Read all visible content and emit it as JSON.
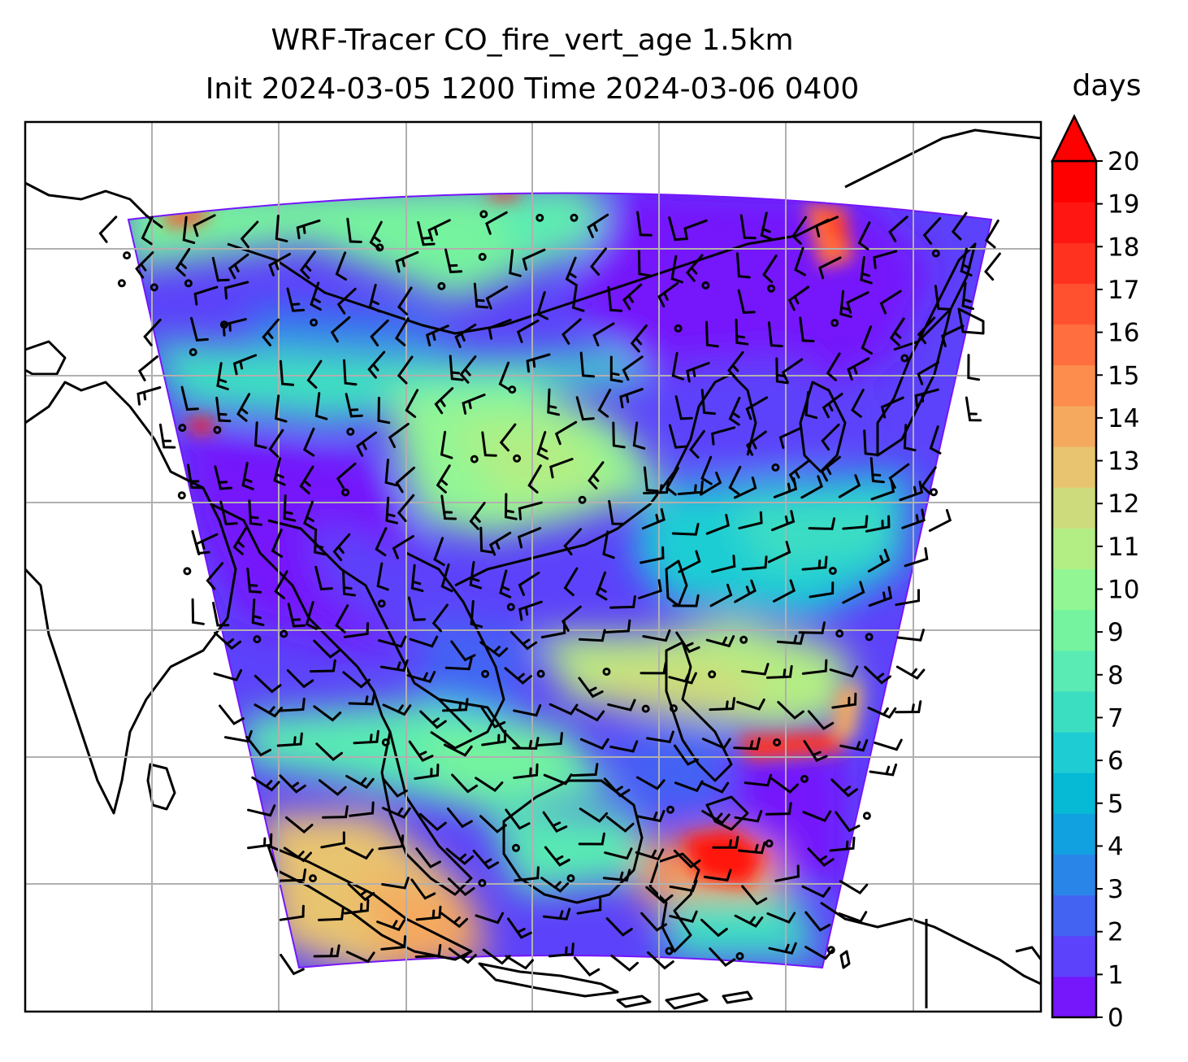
{
  "title_line1": "WRF-Tracer CO_fire_vert_age 1.5km",
  "title_line2": "Init 2024-03-05 1200 Time 2024-03-06 0400",
  "colorbar": {
    "unit": "days",
    "min": 0,
    "max": 20,
    "extend": "max",
    "ticks": [
      "0",
      "1",
      "2",
      "3",
      "4",
      "5",
      "6",
      "7",
      "8",
      "9",
      "10",
      "11",
      "12",
      "13",
      "14",
      "15",
      "16",
      "17",
      "18",
      "19",
      "20"
    ],
    "colors": [
      "#7516fb",
      "#5c42fa",
      "#4363f3",
      "#2a85e9",
      "#12a1e0",
      "#06b9d5",
      "#1ecdd4",
      "#3cdec2",
      "#59ebb3",
      "#76f39e",
      "#92f694",
      "#b2ee84",
      "#cedb7c",
      "#e8c470",
      "#f5a95f",
      "#fc8d4c",
      "#ff6e3f",
      "#ff5130",
      "#ff3220",
      "#ff1511",
      "#ff0000"
    ],
    "extend_color": "#ff0000"
  },
  "map": {
    "gridlines": true,
    "background": "#ffffff",
    "field_name": "CO_fire_vert_age",
    "overlay": "wind-barbs",
    "coastlines": true
  }
}
